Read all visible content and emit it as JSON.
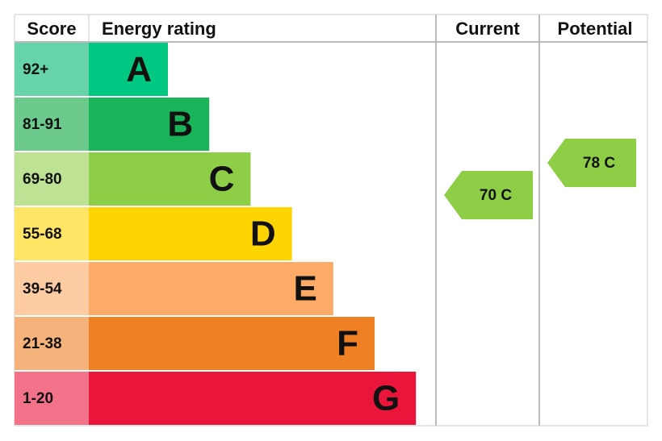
{
  "header": {
    "score": "Score",
    "energy_rating": "Energy rating",
    "current": "Current",
    "potential": "Potential"
  },
  "bands": [
    {
      "score": "92+",
      "letter": "A",
      "color": "#00c781",
      "score_color": "#66d3a8"
    },
    {
      "score": "81-91",
      "letter": "B",
      "color": "#19b459",
      "score_color": "#6ccb8c"
    },
    {
      "score": "69-80",
      "letter": "C",
      "color": "#8dce46",
      "score_color": "#bde293"
    },
    {
      "score": "55-68",
      "letter": "D",
      "color": "#ffd500",
      "score_color": "#ffe566"
    },
    {
      "score": "39-54",
      "letter": "E",
      "color": "#fcaa65",
      "score_color": "#fdcca3"
    },
    {
      "score": "21-38",
      "letter": "F",
      "color": "#ef8023",
      "score_color": "#f5b37b"
    },
    {
      "score": "1-20",
      "letter": "G",
      "color": "#e9153b",
      "score_color": "#f27389"
    }
  ],
  "current": {
    "label": "70 C",
    "color": "#8dce46"
  },
  "potential": {
    "label": "78 C",
    "color": "#8dce46"
  }
}
